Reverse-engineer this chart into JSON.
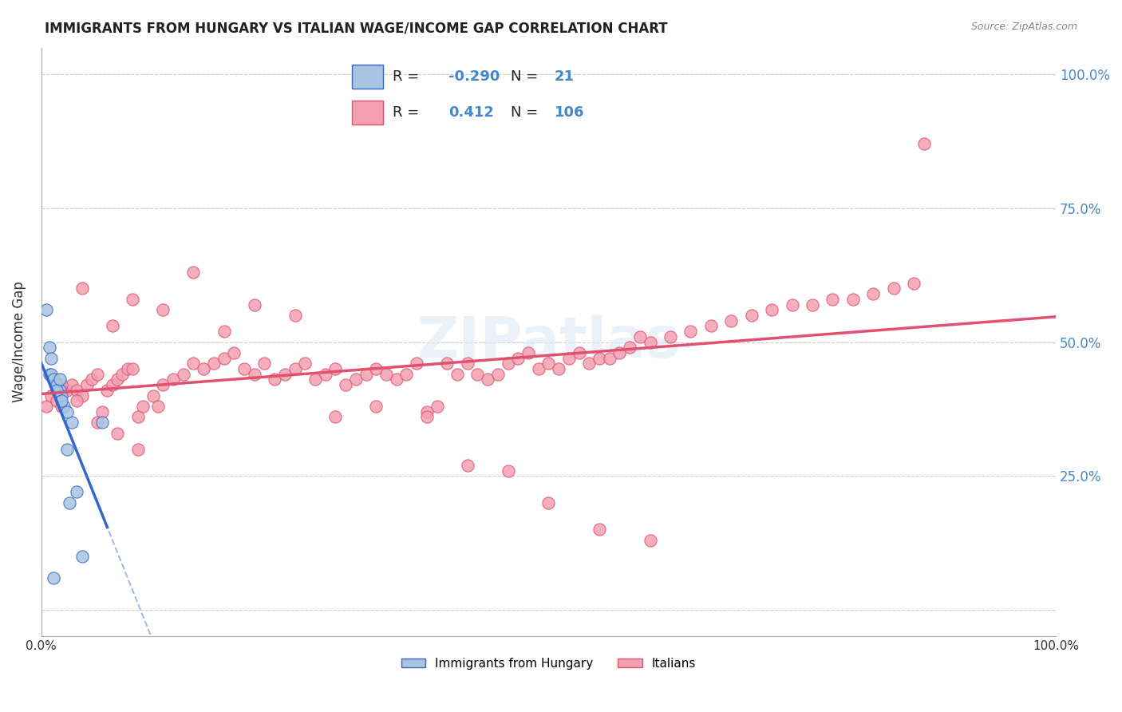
{
  "title": "IMMIGRANTS FROM HUNGARY VS ITALIAN WAGE/INCOME GAP CORRELATION CHART",
  "source": "Source: ZipAtlas.com",
  "ylabel": "Wage/Income Gap",
  "xlim": [
    0,
    1
  ],
  "ylim": [
    -0.05,
    1.05
  ],
  "ytick_labels": [
    "",
    "25.0%",
    "50.0%",
    "75.0%",
    "100.0%"
  ],
  "ytick_values": [
    0,
    0.25,
    0.5,
    0.75,
    1.0
  ],
  "xtick_values": [
    0.0,
    0.1,
    0.2,
    0.3,
    0.4,
    0.5,
    0.6,
    0.7,
    0.8,
    0.9,
    1.0
  ],
  "hungary_R": -0.29,
  "hungary_N": 21,
  "italy_R": 0.412,
  "italy_N": 106,
  "hungary_color": "#a8c4e0",
  "hungary_line_color": "#3366cc",
  "italy_color": "#f4a0b0",
  "italy_line_color": "#e05070",
  "hungary_x": [
    0.005,
    0.008,
    0.01,
    0.012,
    0.015,
    0.018,
    0.02,
    0.022,
    0.025,
    0.028,
    0.03,
    0.035,
    0.04,
    0.008,
    0.01,
    0.015,
    0.02,
    0.06,
    0.012,
    0.025,
    0.018
  ],
  "hungary_y": [
    0.56,
    0.44,
    0.44,
    0.43,
    0.42,
    0.41,
    0.4,
    0.38,
    0.3,
    0.2,
    0.35,
    0.22,
    0.1,
    0.49,
    0.47,
    0.41,
    0.39,
    0.35,
    0.06,
    0.37,
    0.43
  ],
  "italy_x": [
    0.005,
    0.01,
    0.015,
    0.02,
    0.025,
    0.03,
    0.035,
    0.04,
    0.045,
    0.05,
    0.055,
    0.06,
    0.065,
    0.07,
    0.075,
    0.08,
    0.085,
    0.09,
    0.095,
    0.1,
    0.11,
    0.12,
    0.13,
    0.14,
    0.15,
    0.16,
    0.17,
    0.18,
    0.19,
    0.2,
    0.21,
    0.22,
    0.23,
    0.24,
    0.25,
    0.26,
    0.27,
    0.28,
    0.29,
    0.3,
    0.31,
    0.32,
    0.33,
    0.34,
    0.35,
    0.36,
    0.37,
    0.38,
    0.39,
    0.4,
    0.41,
    0.42,
    0.43,
    0.44,
    0.45,
    0.46,
    0.47,
    0.48,
    0.49,
    0.5,
    0.51,
    0.52,
    0.53,
    0.54,
    0.55,
    0.56,
    0.57,
    0.58,
    0.59,
    0.6,
    0.62,
    0.64,
    0.66,
    0.68,
    0.7,
    0.72,
    0.74,
    0.76,
    0.78,
    0.8,
    0.82,
    0.84,
    0.86,
    0.87,
    0.04,
    0.07,
    0.09,
    0.12,
    0.15,
    0.18,
    0.21,
    0.25,
    0.29,
    0.33,
    0.38,
    0.42,
    0.46,
    0.5,
    0.55,
    0.6,
    0.02,
    0.035,
    0.055,
    0.075,
    0.095,
    0.115
  ],
  "italy_y": [
    0.38,
    0.4,
    0.39,
    0.38,
    0.41,
    0.42,
    0.41,
    0.4,
    0.42,
    0.43,
    0.44,
    0.37,
    0.41,
    0.42,
    0.43,
    0.44,
    0.45,
    0.45,
    0.36,
    0.38,
    0.4,
    0.42,
    0.43,
    0.44,
    0.46,
    0.45,
    0.46,
    0.47,
    0.48,
    0.45,
    0.44,
    0.46,
    0.43,
    0.44,
    0.45,
    0.46,
    0.43,
    0.44,
    0.45,
    0.42,
    0.43,
    0.44,
    0.45,
    0.44,
    0.43,
    0.44,
    0.46,
    0.37,
    0.38,
    0.46,
    0.44,
    0.46,
    0.44,
    0.43,
    0.44,
    0.46,
    0.47,
    0.48,
    0.45,
    0.46,
    0.45,
    0.47,
    0.48,
    0.46,
    0.47,
    0.47,
    0.48,
    0.49,
    0.51,
    0.5,
    0.51,
    0.52,
    0.53,
    0.54,
    0.55,
    0.56,
    0.57,
    0.57,
    0.58,
    0.58,
    0.59,
    0.6,
    0.61,
    0.87,
    0.6,
    0.53,
    0.58,
    0.56,
    0.63,
    0.52,
    0.57,
    0.55,
    0.36,
    0.38,
    0.36,
    0.27,
    0.26,
    0.2,
    0.15,
    0.13,
    0.42,
    0.39,
    0.35,
    0.33,
    0.3,
    0.38
  ]
}
